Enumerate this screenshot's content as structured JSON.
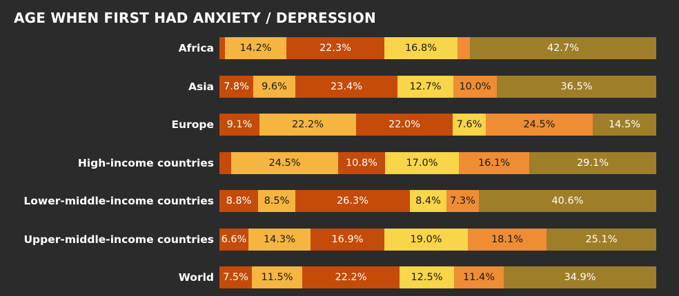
{
  "title": "AGE WHEN FIRST HAD ANXIETY / DEPRESSION",
  "colors": [
    "#c44b0a",
    "#f5b540",
    "#c44b0a",
    "#f8d549",
    "#ee8d34",
    "#9e7e29"
  ],
  "label_colors": [
    "#ffffff",
    "#1a1a1a",
    "#ffffff",
    "#1a1a1a",
    "#1a1a1a",
    "#ffffff"
  ],
  "chart_data": {
    "type": "bar",
    "orientation": "horizontal",
    "stacked": "100%",
    "categories": [
      "Africa",
      "Asia",
      "Europe",
      "High-income countries",
      "Lower-middle-income countries",
      "Upper-middle-income countries",
      "World"
    ],
    "series": [
      {
        "values": [
          1.2,
          7.8,
          9.1,
          2.7,
          8.8,
          6.6,
          7.5
        ]
      },
      {
        "values": [
          14.2,
          9.6,
          22.2,
          24.5,
          8.5,
          14.3,
          11.5
        ]
      },
      {
        "values": [
          22.3,
          23.4,
          22.0,
          10.8,
          26.3,
          16.9,
          22.2
        ]
      },
      {
        "values": [
          16.8,
          12.7,
          7.6,
          17.0,
          8.4,
          19.0,
          12.5
        ]
      },
      {
        "values": [
          2.8,
          10.0,
          24.5,
          16.1,
          7.3,
          18.1,
          11.4
        ]
      },
      {
        "values": [
          42.7,
          36.5,
          14.5,
          29.1,
          40.6,
          25.1,
          34.9
        ]
      }
    ],
    "data_labels": [
      [
        "",
        "14.2%",
        "22.3%",
        "16.8%",
        "",
        "42.7%"
      ],
      [
        "7.8%",
        "9.6%",
        "23.4%",
        "12.7%",
        "10.0%",
        "36.5%"
      ],
      [
        "9.1%",
        "22.2%",
        "22.0%",
        "7.6%",
        "24.5%",
        "14.5%"
      ],
      [
        "",
        "24.5%",
        "10.8%",
        "17.0%",
        "16.1%",
        "29.1%"
      ],
      [
        "8.8%",
        "8.5%",
        "26.3%",
        "8.4%",
        "7.3%",
        "40.6%"
      ],
      [
        "6.6%",
        "14.3%",
        "16.9%",
        "19.0%",
        "18.1%",
        "25.1%"
      ],
      [
        "7.5%",
        "11.5%",
        "22.2%",
        "12.5%",
        "11.4%",
        "34.9%"
      ]
    ],
    "xlim": [
      0,
      100
    ],
    "grid": false,
    "legend": "none"
  }
}
